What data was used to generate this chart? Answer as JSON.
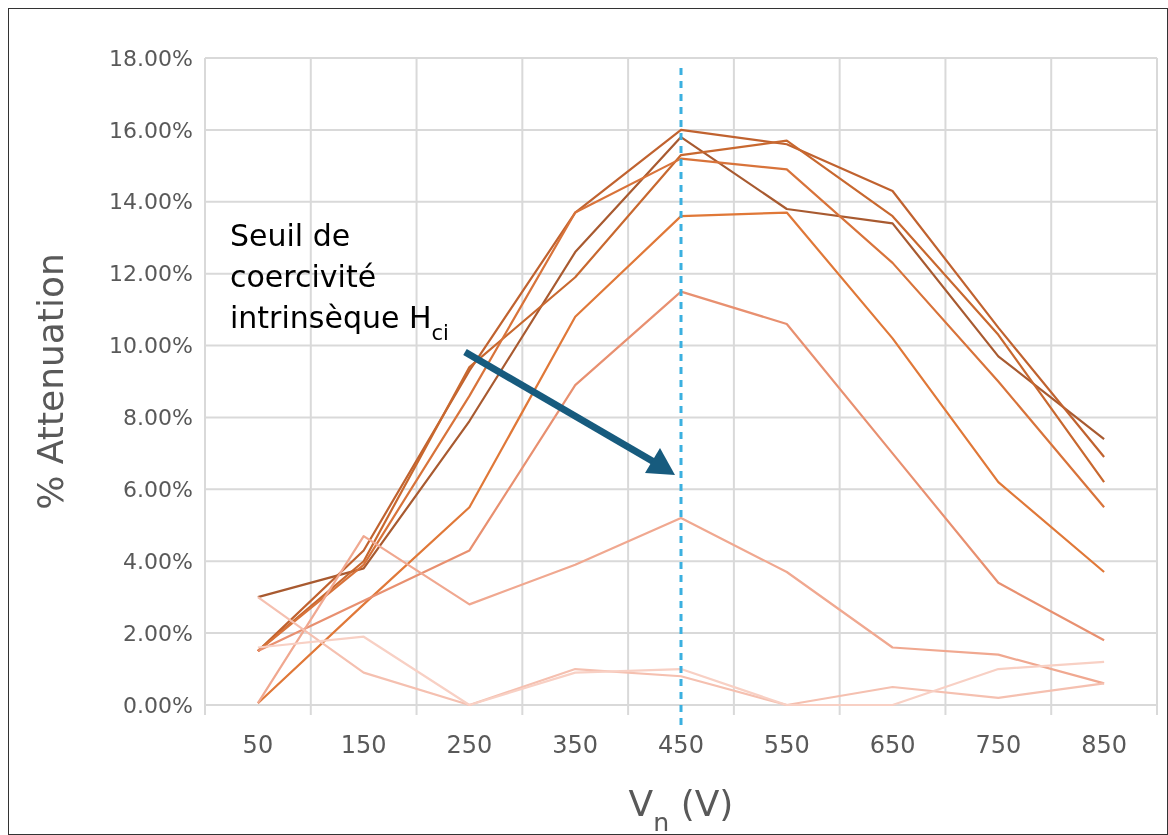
{
  "chart_data": {
    "type": "line",
    "xlabel": "V$_{n}$ (V)",
    "ylabel": "% Attenuation",
    "categories": [
      "50",
      "150",
      "250",
      "350",
      "450",
      "550",
      "650",
      "750",
      "850"
    ],
    "ylim": [
      0,
      18
    ],
    "yticks": [
      {
        "value": 0,
        "label": "0.00%"
      },
      {
        "value": 2,
        "label": "2.00%"
      },
      {
        "value": 4,
        "label": "4.00%"
      },
      {
        "value": 6,
        "label": "6.00%"
      },
      {
        "value": 8,
        "label": "8.00%"
      },
      {
        "value": 10,
        "label": "10.00%"
      },
      {
        "value": 12,
        "label": "12.00%"
      },
      {
        "value": 14,
        "label": "14.00%"
      },
      {
        "value": 16,
        "label": "16.00%"
      },
      {
        "value": 18,
        "label": "18.00%"
      }
    ],
    "grid": true,
    "series": [
      {
        "color": "#a85a30",
        "values": [
          3.0,
          3.8,
          7.9,
          12.6,
          15.8,
          13.8,
          13.4,
          9.7,
          7.4
        ]
      },
      {
        "color": "#c0622f",
        "values": [
          1.5,
          4.3,
          9.3,
          13.7,
          16.0,
          15.6,
          14.3,
          10.5,
          6.9
        ]
      },
      {
        "color": "#c8682f",
        "values": [
          1.5,
          4.0,
          9.4,
          11.9,
          15.3,
          15.7,
          13.6,
          10.3,
          6.2
        ]
      },
      {
        "color": "#d8733a",
        "values": [
          1.5,
          3.9,
          8.6,
          13.7,
          15.2,
          14.9,
          12.3,
          9.0,
          5.5
        ]
      },
      {
        "color": "#e07838",
        "values": [
          0.05,
          2.8,
          5.5,
          10.8,
          13.6,
          13.7,
          10.2,
          6.2,
          3.7
        ]
      },
      {
        "color": "#e89070",
        "values": [
          1.5,
          2.9,
          4.3,
          8.9,
          11.5,
          10.6,
          7.0,
          3.4,
          1.8
        ]
      },
      {
        "color": "#f0a890",
        "values": [
          0.05,
          4.7,
          2.8,
          3.9,
          5.2,
          3.7,
          1.6,
          1.4,
          0.6
        ]
      },
      {
        "color": "#f5c0b0",
        "values": [
          3.0,
          0.9,
          0.0,
          1.0,
          0.8,
          0.0,
          0.5,
          0.2,
          0.6
        ]
      },
      {
        "color": "#f8d0c4",
        "values": [
          1.6,
          1.9,
          0.0,
          0.9,
          1.0,
          0.0,
          0.0,
          1.0,
          1.2
        ]
      }
    ],
    "ref_lines": [
      {
        "axis": "x",
        "value": "450",
        "color": "#3bb0e0",
        "line_style": "dashed"
      }
    ],
    "annotations": [
      "Seuil de coercivité intrinsèque H$_{ci}$"
    ]
  }
}
